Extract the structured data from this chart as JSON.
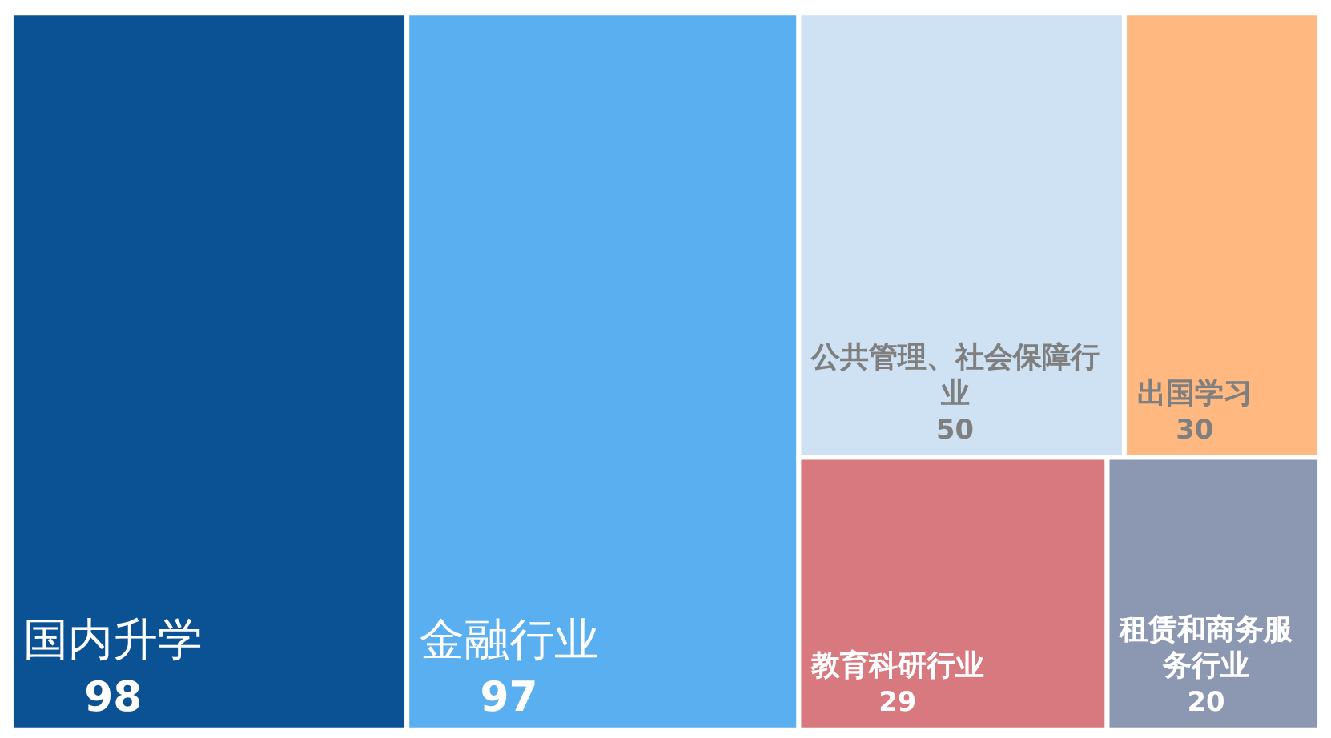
{
  "chart_data": {
    "type": "other",
    "categories": [
      "国内升学",
      "金融行业",
      "公共管理、社会保障行业",
      "出国学习",
      "教育科研行业",
      "租赁和商务服务行业"
    ],
    "values": [
      98,
      97,
      50,
      30,
      29,
      20
    ],
    "colors": [
      "#0b5294",
      "#5aaff0",
      "#cfe2f3",
      "#ffb880",
      "#d8797f",
      "#8c98b2"
    ],
    "data_labels": true
  }
}
